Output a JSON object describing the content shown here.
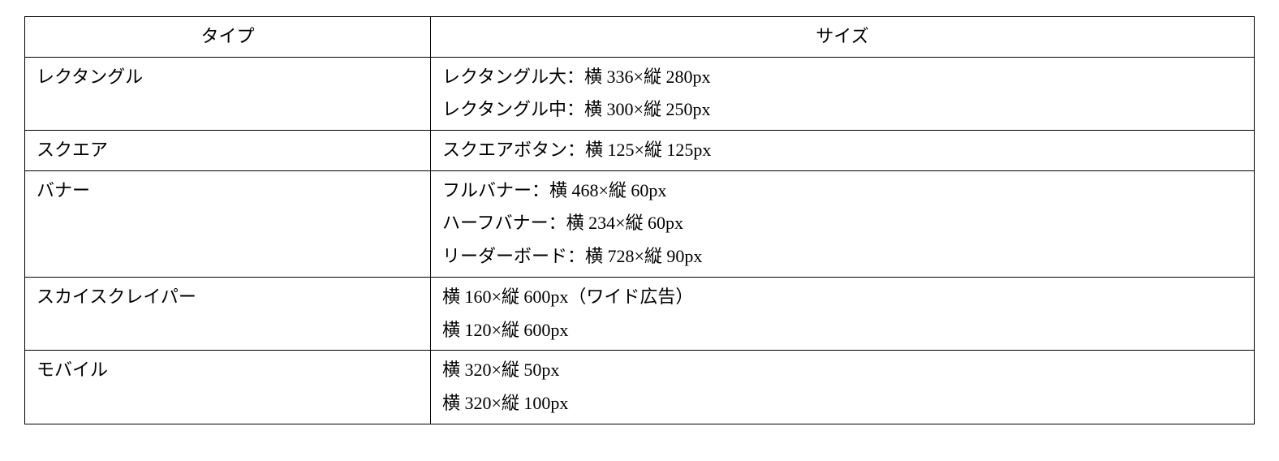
{
  "table": {
    "columns": [
      "タイプ",
      "サイズ"
    ],
    "rows": [
      {
        "type": "レクタングル",
        "sizes": [
          "レクタングル大：横 336×縦 280px",
          "レクタングル中：横 300×縦 250px"
        ]
      },
      {
        "type": "スクエア",
        "sizes": [
          "スクエアボタン：横 125×縦 125px"
        ]
      },
      {
        "type": "バナー",
        "sizes": [
          "フルバナー：横 468×縦 60px",
          "ハーフバナー：横 234×縦 60px",
          "リーダーボード：横 728×縦 90px"
        ]
      },
      {
        "type": "スカイスクレイパー",
        "sizes": [
          "横 160×縦 600px（ワイド広告）",
          "横 120×縦 600px"
        ]
      },
      {
        "type": "モバイル",
        "sizes": [
          "横 320×縦 50px",
          "横 320×縦 100px"
        ]
      }
    ],
    "style": {
      "border_color": "#000000",
      "background_color": "#ffffff",
      "text_color": "#000000",
      "font_family": "serif-mincho",
      "font_size_pt": 16,
      "col_widths_pct": [
        33,
        67
      ],
      "line_height": 1.85
    }
  }
}
